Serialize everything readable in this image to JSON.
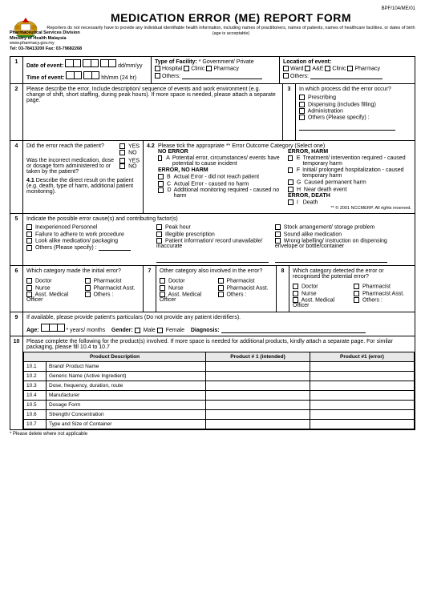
{
  "formcode": "BPF/104/ME/01",
  "org": {
    "line1": "Pharmaceutical Services Division",
    "line2": "Ministry of Health Malaysia",
    "url": "www.pharmacy.gov.my",
    "tel": "Tel: 03-78413200  Fax: 03-79682268"
  },
  "title": "MEDICATION ERROR (ME) REPORT FORM",
  "subtitle": "Reporters do not necessarily have to provide any individual identifiable health information, including names of practitioners, names of patients, names of healthcare facilities, or dates of birth (age is acceptable)",
  "s1": {
    "date_label": "Date of event:",
    "date_fmt": "dd/mm/yy",
    "time_label": "Time of event:",
    "time_fmt": "hh/mm (24 hr)",
    "facility_title": "Type of Facility:",
    "facility_note": "* Government/ Private",
    "hospital": "Hospital",
    "clinic": "Clinic",
    "pharmacy": "Pharmacy",
    "others": "Others:",
    "loc_title": "Location of event:",
    "ward": "Ward",
    "ae": "A&E"
  },
  "s2": {
    "text": "Please describe the error. Include description/ sequence of events and work environment (e.g. change of shift, short staffing, during peak hours). If more space is needed, please attach a separate page."
  },
  "s3": {
    "q": "In which process did the error occur?",
    "a": "Prescribing",
    "b": "Dispensing (includes filling)",
    "c": "Administration",
    "d": "Others (Please specify) :"
  },
  "s4": {
    "q1": "Did the error reach the patient?",
    "q2": "Was the incorrect medication, dose or dosage form administered to or taken by the patient?",
    "yes": "YES",
    "no": "NO",
    "s41": "Describe the direct result on the patient (e.g. death, type of harm, additional patient monitoring)."
  },
  "s42": {
    "title": "Please tick the appropriate ** Error Outcome Category (Select one)",
    "h1": "NO ERROR",
    "a": "Potential error, circumstances/ events have potential to cause incident",
    "h2": "ERROR, NO HARM",
    "b": "Actual Error - did not reach patient",
    "c": "Actual Error - caused no harm",
    "d": "Additional monitoring required - caused no harm",
    "h3": "ERROR, HARM",
    "e": "Treatment/ intervention required - caused temporary harm",
    "f": "Initial/ prolonged hospitalization - caused temporary harm",
    "g": "Caused permanent harm",
    "h": "Near death event",
    "h4": "ERROR, DEATH",
    "i": "Death",
    "foot": "** © 2001 NCCMERP. All rights reserved."
  },
  "s5": {
    "title": "Indicate the possible error cause(s) and contributing factor(s)",
    "a": "Inexperienced Personnel",
    "b": "Failure to adhere to work procedure",
    "c": "Look alike medication/ packaging",
    "d": "Others (Please specify) :",
    "e": "Peak hour",
    "f": "Illegible prescription",
    "g": "Patient information/ record unavailable/ inaccurate",
    "h": "Stock arrangement/ storage problem",
    "i": "Sound alike medication",
    "j": "Wrong labelling/ instruction on dispensing envelope or bottle/container"
  },
  "s6": {
    "q": "Which category made the initial error?"
  },
  "s7": {
    "q": "Other category also involved in the error?"
  },
  "s8": {
    "q": "Which category detected the error or recognised the potential error?"
  },
  "cats": {
    "doctor": "Doctor",
    "nurse": "Nurse",
    "amo": "Asst. Medical Officer",
    "pharm": "Pharmacist",
    "passt": "Pharmacist Asst.",
    "others": "Others :"
  },
  "s9": {
    "text": "If available, please provide patient's particulars (Do not provide any patient identifiers).",
    "age": "Age:",
    "age_unit": "* years/ months",
    "gender": "Gender:",
    "male": "Male",
    "female": "Female",
    "diag": "Diagnosis:"
  },
  "s10": {
    "text": "Please complete the following for the product(s) involved. If more space is needed for additional products, kindly attach a separate page. For similar packaging, please fill 10.4 to 10.7",
    "col1": "Product Description",
    "col2": "Product # 1 (intended)",
    "col3": "Product #1 (error)",
    "rows": [
      {
        "n": "10.1",
        "t": "Brand/ Product Name"
      },
      {
        "n": "10.2",
        "t": "Generic Name (Active Ingredient)"
      },
      {
        "n": "10.3",
        "t": "Dose, frequency, duration, route"
      },
      {
        "n": "10.4",
        "t": "Manufacturer"
      },
      {
        "n": "10.5",
        "t": "Dosage Form"
      },
      {
        "n": "10.6",
        "t": "Strength/ Concentration"
      },
      {
        "n": "10.7",
        "t": "Type and Size of Container"
      }
    ]
  },
  "footnote": "* Please delete where not applicable"
}
